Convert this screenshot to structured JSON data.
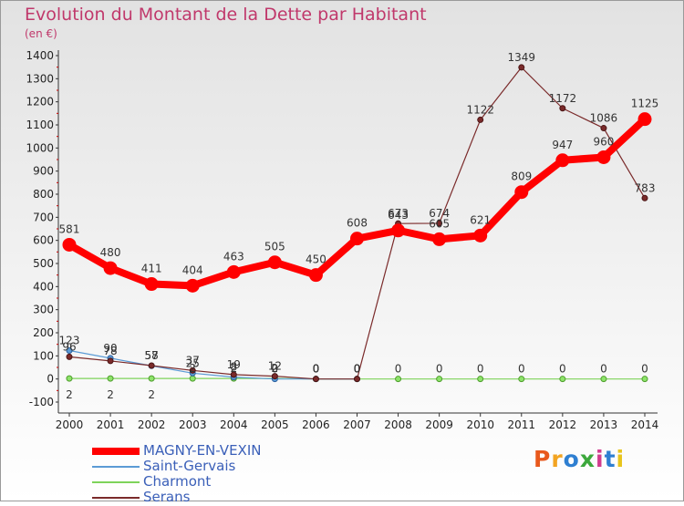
{
  "header": {
    "title": "Evolution du Montant de la Dette par Habitant",
    "subtitle": "(en €)"
  },
  "logo": {
    "text": "Proxiti",
    "colors": [
      "#e8581c",
      "#f2a422",
      "#2e7fd1",
      "#3ca83c",
      "#d13b8e",
      "#2e7fd1",
      "#e8c51c"
    ]
  },
  "chart_data": {
    "type": "line",
    "x": [
      2000,
      2001,
      2002,
      2003,
      2004,
      2005,
      2006,
      2007,
      2008,
      2009,
      2010,
      2011,
      2012,
      2013,
      2014
    ],
    "ylim": [
      -100,
      1400
    ],
    "yticks": [
      -100,
      0,
      100,
      200,
      300,
      400,
      500,
      600,
      700,
      800,
      900,
      1000,
      1100,
      1200,
      1300,
      1400
    ],
    "grid": false,
    "legend_position": "bottom-left",
    "series": [
      {
        "name": "MAGNY-EN-VEXIN",
        "color": "#ff0000",
        "values": [
          581,
          480,
          411,
          404,
          463,
          505,
          450,
          608,
          643,
          605,
          621,
          809,
          947,
          960,
          1125
        ]
      },
      {
        "name": "Saint-Gervais",
        "color": "#5b9bd5",
        "values": [
          123,
          90,
          57,
          25,
          8,
          0,
          0,
          0,
          null,
          null,
          null,
          null,
          null,
          null,
          null
        ]
      },
      {
        "name": "Charmont",
        "color": "#7ed35a",
        "values": [
          2,
          2,
          2,
          2,
          2,
          2,
          0,
          0,
          0,
          0,
          0,
          0,
          0,
          0,
          0
        ]
      },
      {
        "name": "Serans",
        "color": "#7a2a2a",
        "values": [
          96,
          78,
          58,
          37,
          19,
          12,
          0,
          0,
          673,
          674,
          1122,
          1349,
          1172,
          1086,
          783
        ]
      }
    ]
  }
}
